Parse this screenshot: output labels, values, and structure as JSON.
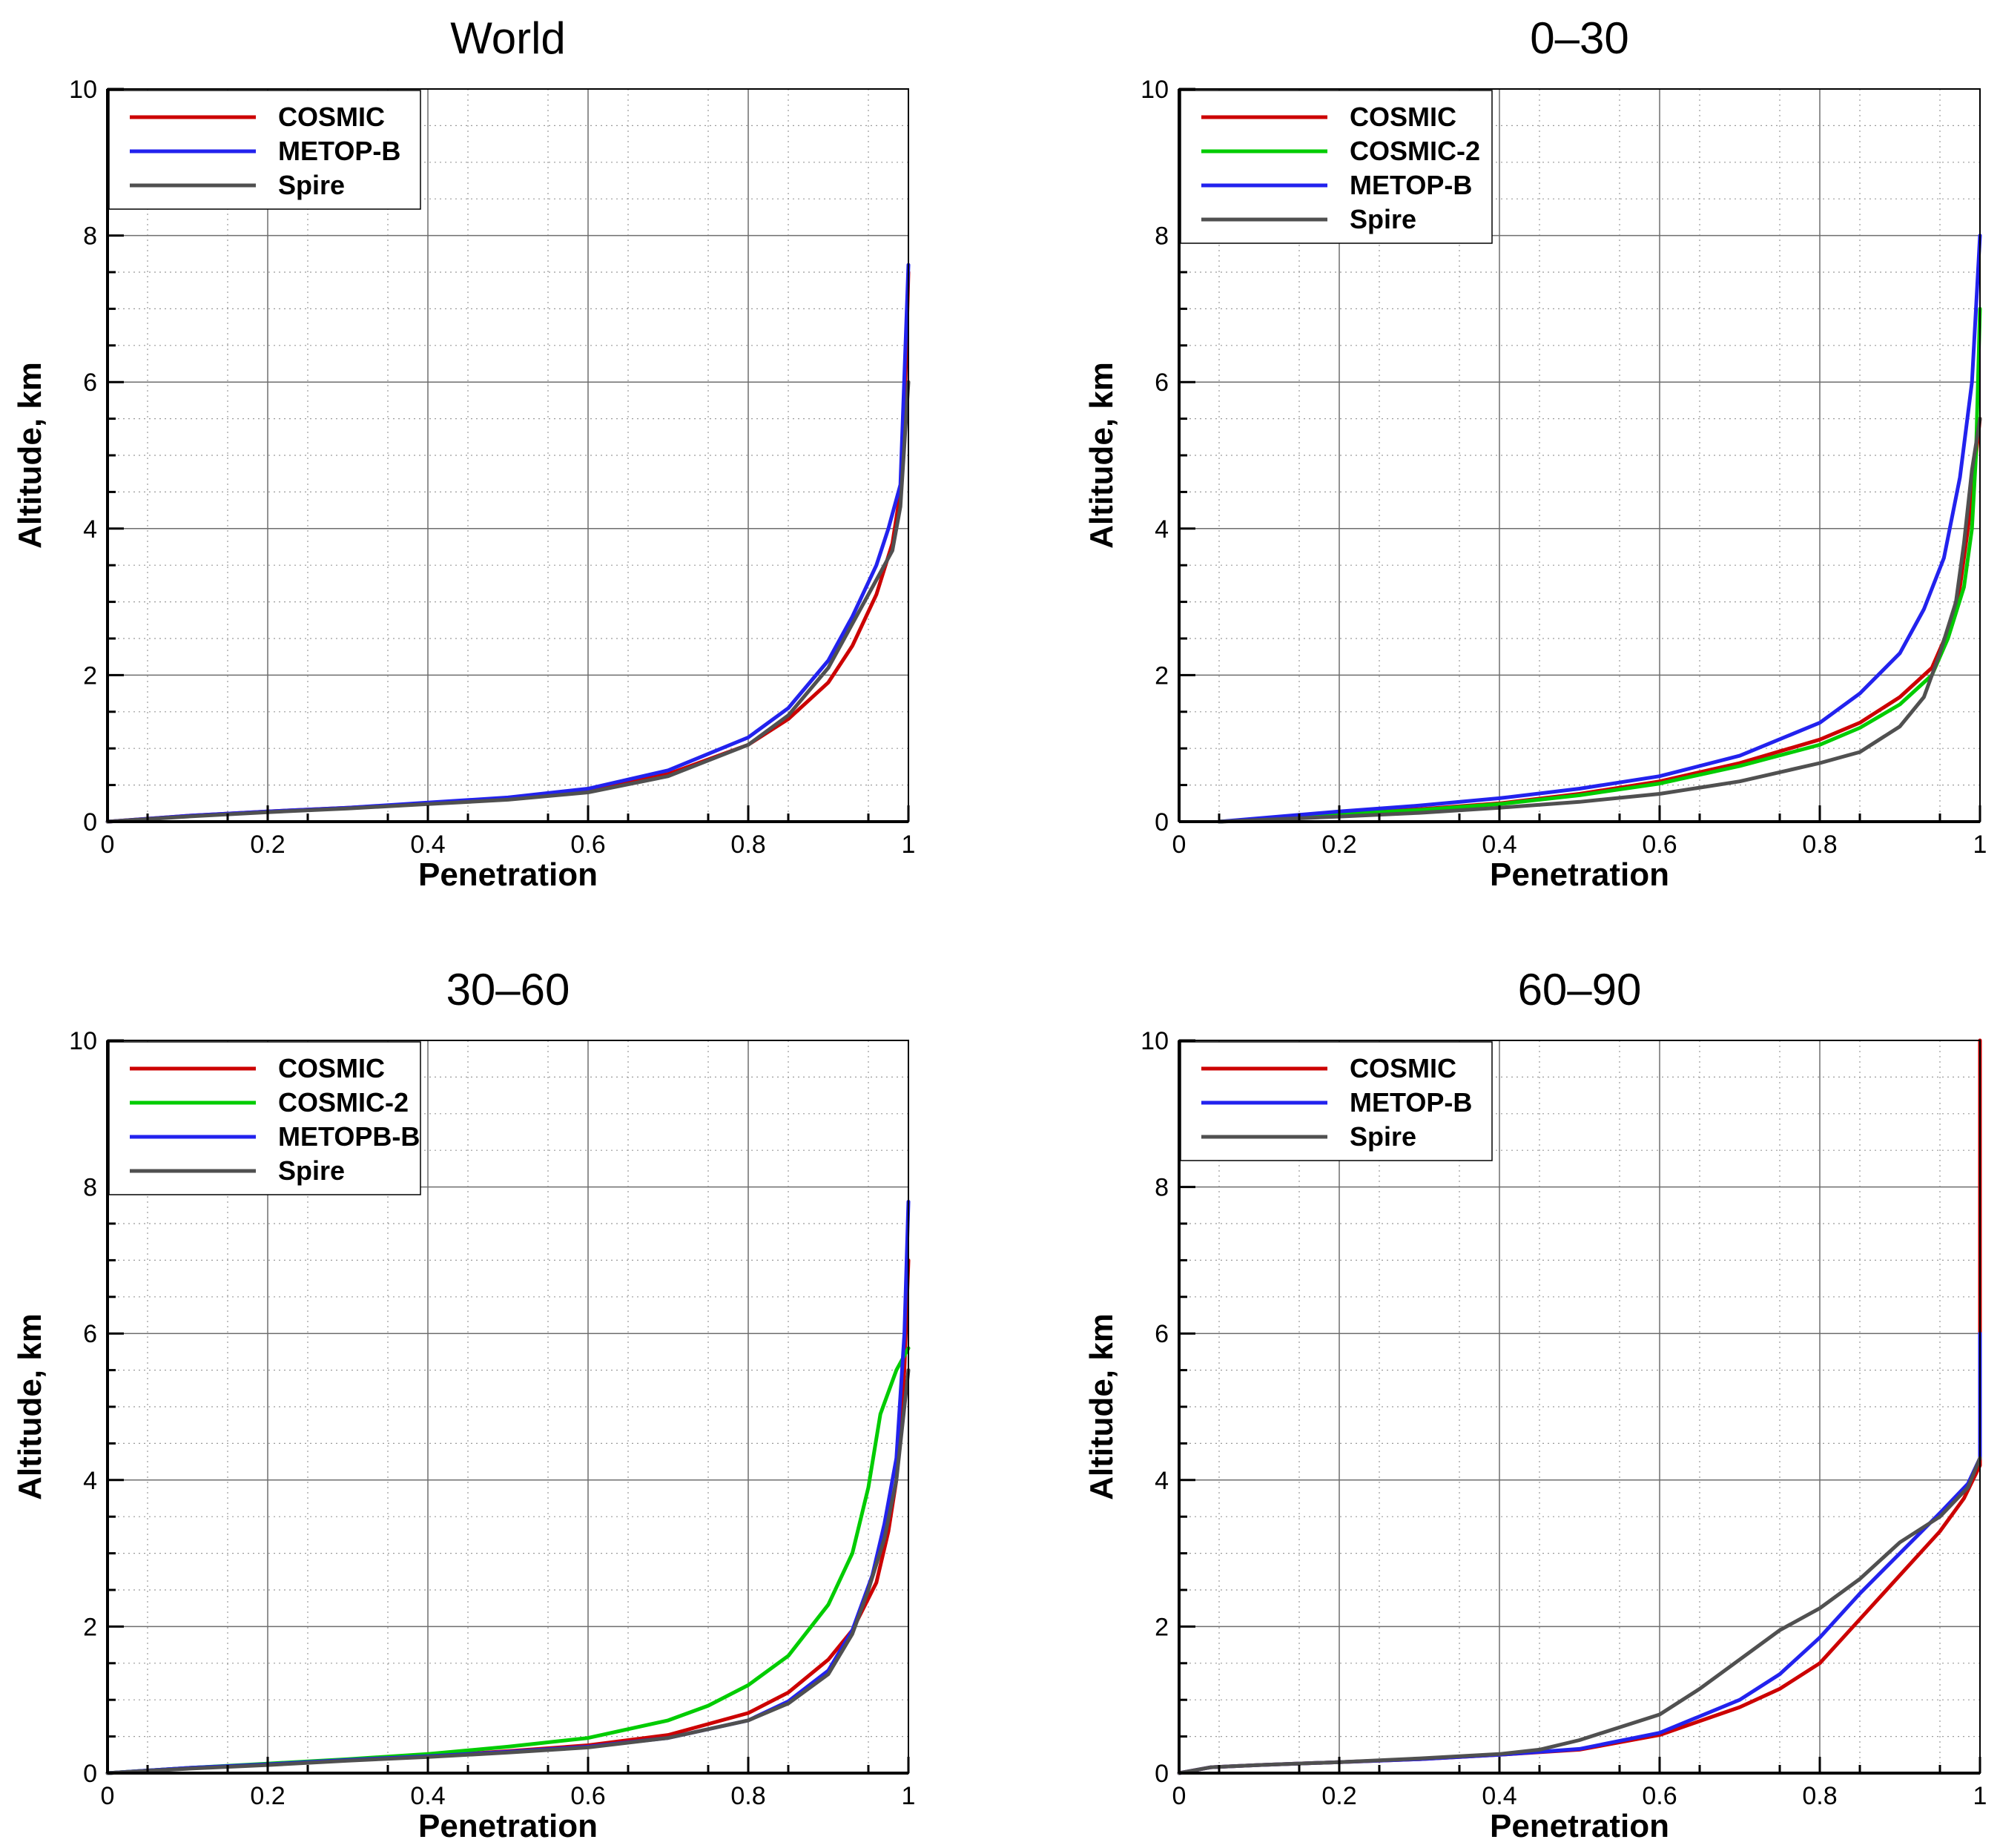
{
  "colors": {
    "COSMIC": "#cc0000",
    "COSMIC-2": "#00cc00",
    "METOP-B": "#2222ee",
    "METOPB-B": "#2222ee",
    "Spire": "#505050"
  },
  "chart_data": [
    {
      "type": "line",
      "title": "World",
      "xlabel": "Penetration",
      "ylabel": "Altitude, km",
      "xlim": [
        0,
        1
      ],
      "ylim": [
        0,
        10
      ],
      "xticks": [
        "0",
        "0.2",
        "0.4",
        "0.6",
        "0.8",
        "1"
      ],
      "yticks": [
        "0",
        "2",
        "4",
        "6",
        "8",
        "10"
      ],
      "grid": true,
      "legend_position": "top-left",
      "series": [
        {
          "name": "COSMIC",
          "points": [
            [
              0,
              0
            ],
            [
              0.1,
              0.08
            ],
            [
              0.2,
              0.14
            ],
            [
              0.3,
              0.19
            ],
            [
              0.4,
              0.25
            ],
            [
              0.5,
              0.31
            ],
            [
              0.6,
              0.42
            ],
            [
              0.7,
              0.65
            ],
            [
              0.8,
              1.05
            ],
            [
              0.85,
              1.4
            ],
            [
              0.9,
              1.9
            ],
            [
              0.93,
              2.4
            ],
            [
              0.96,
              3.1
            ],
            [
              0.98,
              3.8
            ],
            [
              0.99,
              4.5
            ],
            [
              0.995,
              5.5
            ],
            [
              1,
              7.5
            ]
          ]
        },
        {
          "name": "METOP-B",
          "points": [
            [
              0,
              0
            ],
            [
              0.1,
              0.08
            ],
            [
              0.2,
              0.14
            ],
            [
              0.3,
              0.19
            ],
            [
              0.4,
              0.26
            ],
            [
              0.5,
              0.33
            ],
            [
              0.6,
              0.45
            ],
            [
              0.7,
              0.7
            ],
            [
              0.8,
              1.15
            ],
            [
              0.85,
              1.55
            ],
            [
              0.9,
              2.2
            ],
            [
              0.93,
              2.8
            ],
            [
              0.96,
              3.5
            ],
            [
              0.975,
              4.0
            ],
            [
              0.99,
              4.6
            ],
            [
              1,
              7.6
            ]
          ]
        },
        {
          "name": "Spire",
          "points": [
            [
              0,
              0
            ],
            [
              0.1,
              0.07
            ],
            [
              0.2,
              0.13
            ],
            [
              0.3,
              0.18
            ],
            [
              0.4,
              0.24
            ],
            [
              0.5,
              0.3
            ],
            [
              0.6,
              0.4
            ],
            [
              0.7,
              0.62
            ],
            [
              0.8,
              1.05
            ],
            [
              0.85,
              1.45
            ],
            [
              0.9,
              2.1
            ],
            [
              0.93,
              2.7
            ],
            [
              0.96,
              3.3
            ],
            [
              0.98,
              3.7
            ],
            [
              0.99,
              4.3
            ],
            [
              1,
              6.0
            ]
          ]
        }
      ]
    },
    {
      "type": "line",
      "title": "0–30",
      "xlabel": "Penetration",
      "ylabel": "Altitude, km",
      "xlim": [
        0,
        1
      ],
      "ylim": [
        0,
        10
      ],
      "xticks": [
        "0",
        "0.2",
        "0.4",
        "0.6",
        "0.8",
        "1"
      ],
      "yticks": [
        "0",
        "2",
        "4",
        "6",
        "8",
        "10"
      ],
      "grid": true,
      "legend_position": "top-left",
      "series": [
        {
          "name": "COSMIC",
          "points": [
            [
              0.05,
              0
            ],
            [
              0.2,
              0.1
            ],
            [
              0.3,
              0.17
            ],
            [
              0.4,
              0.25
            ],
            [
              0.5,
              0.38
            ],
            [
              0.6,
              0.55
            ],
            [
              0.7,
              0.8
            ],
            [
              0.8,
              1.12
            ],
            [
              0.85,
              1.35
            ],
            [
              0.9,
              1.7
            ],
            [
              0.94,
              2.1
            ],
            [
              0.96,
              2.6
            ],
            [
              0.975,
              3.2
            ],
            [
              0.985,
              4.0
            ],
            [
              0.995,
              5.0
            ],
            [
              1,
              5.5
            ]
          ]
        },
        {
          "name": "COSMIC-2",
          "points": [
            [
              0.05,
              0
            ],
            [
              0.2,
              0.1
            ],
            [
              0.3,
              0.16
            ],
            [
              0.4,
              0.24
            ],
            [
              0.5,
              0.36
            ],
            [
              0.6,
              0.52
            ],
            [
              0.7,
              0.76
            ],
            [
              0.8,
              1.05
            ],
            [
              0.85,
              1.28
            ],
            [
              0.9,
              1.6
            ],
            [
              0.94,
              2.0
            ],
            [
              0.96,
              2.5
            ],
            [
              0.98,
              3.2
            ],
            [
              0.99,
              4.0
            ],
            [
              0.995,
              5.0
            ],
            [
              1,
              7.0
            ]
          ]
        },
        {
          "name": "METOP-B",
          "points": [
            [
              0.05,
              0
            ],
            [
              0.2,
              0.14
            ],
            [
              0.3,
              0.22
            ],
            [
              0.4,
              0.32
            ],
            [
              0.5,
              0.45
            ],
            [
              0.6,
              0.62
            ],
            [
              0.7,
              0.9
            ],
            [
              0.8,
              1.35
            ],
            [
              0.85,
              1.75
            ],
            [
              0.9,
              2.3
            ],
            [
              0.93,
              2.9
            ],
            [
              0.955,
              3.6
            ],
            [
              0.975,
              4.7
            ],
            [
              0.99,
              6.0
            ],
            [
              1,
              8.0
            ]
          ]
        },
        {
          "name": "Spire",
          "points": [
            [
              0.05,
              0
            ],
            [
              0.2,
              0.07
            ],
            [
              0.3,
              0.12
            ],
            [
              0.4,
              0.19
            ],
            [
              0.5,
              0.27
            ],
            [
              0.6,
              0.38
            ],
            [
              0.7,
              0.55
            ],
            [
              0.8,
              0.8
            ],
            [
              0.85,
              0.95
            ],
            [
              0.9,
              1.3
            ],
            [
              0.93,
              1.7
            ],
            [
              0.95,
              2.3
            ],
            [
              0.97,
              3.0
            ],
            [
              0.98,
              3.8
            ],
            [
              0.99,
              4.8
            ],
            [
              1,
              5.5
            ]
          ]
        }
      ]
    },
    {
      "type": "line",
      "title": "30–60",
      "xlabel": "Penetration",
      "ylabel": "Altitude, km",
      "xlim": [
        0,
        1
      ],
      "ylim": [
        0,
        10
      ],
      "xticks": [
        "0",
        "0.2",
        "0.4",
        "0.6",
        "0.8",
        "1"
      ],
      "yticks": [
        "0",
        "2",
        "4",
        "6",
        "8",
        "10"
      ],
      "grid": true,
      "legend_position": "top-left",
      "series": [
        {
          "name": "COSMIC",
          "points": [
            [
              0,
              0
            ],
            [
              0.1,
              0.07
            ],
            [
              0.2,
              0.12
            ],
            [
              0.3,
              0.18
            ],
            [
              0.4,
              0.23
            ],
            [
              0.5,
              0.3
            ],
            [
              0.6,
              0.38
            ],
            [
              0.7,
              0.52
            ],
            [
              0.8,
              0.82
            ],
            [
              0.85,
              1.1
            ],
            [
              0.9,
              1.55
            ],
            [
              0.93,
              1.95
            ],
            [
              0.96,
              2.6
            ],
            [
              0.975,
              3.3
            ],
            [
              0.985,
              4.0
            ],
            [
              0.995,
              5.5
            ],
            [
              1,
              7.0
            ]
          ]
        },
        {
          "name": "COSMIC-2",
          "points": [
            [
              0,
              0
            ],
            [
              0.1,
              0.07
            ],
            [
              0.2,
              0.13
            ],
            [
              0.3,
              0.19
            ],
            [
              0.4,
              0.26
            ],
            [
              0.5,
              0.36
            ],
            [
              0.6,
              0.48
            ],
            [
              0.7,
              0.72
            ],
            [
              0.75,
              0.92
            ],
            [
              0.8,
              1.2
            ],
            [
              0.85,
              1.6
            ],
            [
              0.9,
              2.3
            ],
            [
              0.93,
              3.0
            ],
            [
              0.95,
              3.9
            ],
            [
              0.965,
              4.9
            ],
            [
              0.985,
              5.5
            ],
            [
              1,
              5.8
            ]
          ]
        },
        {
          "name": "METOPB-B",
          "points": [
            [
              0,
              0
            ],
            [
              0.1,
              0.07
            ],
            [
              0.2,
              0.12
            ],
            [
              0.3,
              0.18
            ],
            [
              0.4,
              0.23
            ],
            [
              0.5,
              0.29
            ],
            [
              0.6,
              0.36
            ],
            [
              0.7,
              0.48
            ],
            [
              0.8,
              0.72
            ],
            [
              0.85,
              0.98
            ],
            [
              0.9,
              1.4
            ],
            [
              0.93,
              1.95
            ],
            [
              0.955,
              2.7
            ],
            [
              0.97,
              3.4
            ],
            [
              0.985,
              4.3
            ],
            [
              0.995,
              6.0
            ],
            [
              1,
              7.8
            ]
          ]
        },
        {
          "name": "Spire",
          "points": [
            [
              0,
              0
            ],
            [
              0.1,
              0.06
            ],
            [
              0.2,
              0.11
            ],
            [
              0.3,
              0.17
            ],
            [
              0.4,
              0.22
            ],
            [
              0.5,
              0.28
            ],
            [
              0.6,
              0.35
            ],
            [
              0.7,
              0.48
            ],
            [
              0.8,
              0.72
            ],
            [
              0.85,
              0.95
            ],
            [
              0.9,
              1.35
            ],
            [
              0.93,
              1.9
            ],
            [
              0.95,
              2.5
            ],
            [
              0.97,
              3.2
            ],
            [
              0.985,
              4.0
            ],
            [
              1,
              5.5
            ]
          ]
        }
      ]
    },
    {
      "type": "line",
      "title": "60–90",
      "xlabel": "Penetration",
      "ylabel": "Altitude, km",
      "xlim": [
        0,
        1
      ],
      "ylim": [
        0,
        10
      ],
      "xticks": [
        "0",
        "0.2",
        "0.4",
        "0.6",
        "0.8",
        "1"
      ],
      "yticks": [
        "0",
        "2",
        "4",
        "6",
        "8",
        "10"
      ],
      "grid": true,
      "legend_position": "top-left",
      "series": [
        {
          "name": "COSMIC",
          "points": [
            [
              0,
              0
            ],
            [
              0.04,
              0.08
            ],
            [
              0.1,
              0.11
            ],
            [
              0.2,
              0.15
            ],
            [
              0.3,
              0.19
            ],
            [
              0.4,
              0.25
            ],
            [
              0.5,
              0.32
            ],
            [
              0.6,
              0.52
            ],
            [
              0.7,
              0.9
            ],
            [
              0.75,
              1.15
            ],
            [
              0.8,
              1.5
            ],
            [
              0.85,
              2.1
            ],
            [
              0.9,
              2.7
            ],
            [
              0.95,
              3.3
            ],
            [
              0.98,
              3.75
            ],
            [
              1,
              4.2
            ],
            [
              1,
              10
            ]
          ]
        },
        {
          "name": "METOP-B",
          "points": [
            [
              0,
              0
            ],
            [
              0.04,
              0.08
            ],
            [
              0.1,
              0.11
            ],
            [
              0.2,
              0.15
            ],
            [
              0.3,
              0.19
            ],
            [
              0.4,
              0.25
            ],
            [
              0.5,
              0.33
            ],
            [
              0.6,
              0.55
            ],
            [
              0.7,
              1.0
            ],
            [
              0.75,
              1.35
            ],
            [
              0.8,
              1.85
            ],
            [
              0.85,
              2.45
            ],
            [
              0.9,
              3.0
            ],
            [
              0.95,
              3.55
            ],
            [
              0.985,
              3.95
            ],
            [
              1,
              4.3
            ],
            [
              1,
              6.0
            ]
          ]
        },
        {
          "name": "Spire",
          "points": [
            [
              0,
              0
            ],
            [
              0.04,
              0.08
            ],
            [
              0.1,
              0.11
            ],
            [
              0.2,
              0.15
            ],
            [
              0.3,
              0.2
            ],
            [
              0.4,
              0.26
            ],
            [
              0.45,
              0.32
            ],
            [
              0.5,
              0.45
            ],
            [
              0.6,
              0.8
            ],
            [
              0.65,
              1.15
            ],
            [
              0.7,
              1.55
            ],
            [
              0.75,
              1.95
            ],
            [
              0.8,
              2.25
            ],
            [
              0.85,
              2.65
            ],
            [
              0.9,
              3.15
            ],
            [
              0.95,
              3.5
            ],
            [
              0.985,
              3.9
            ],
            [
              1,
              4.3
            ]
          ]
        }
      ]
    }
  ]
}
